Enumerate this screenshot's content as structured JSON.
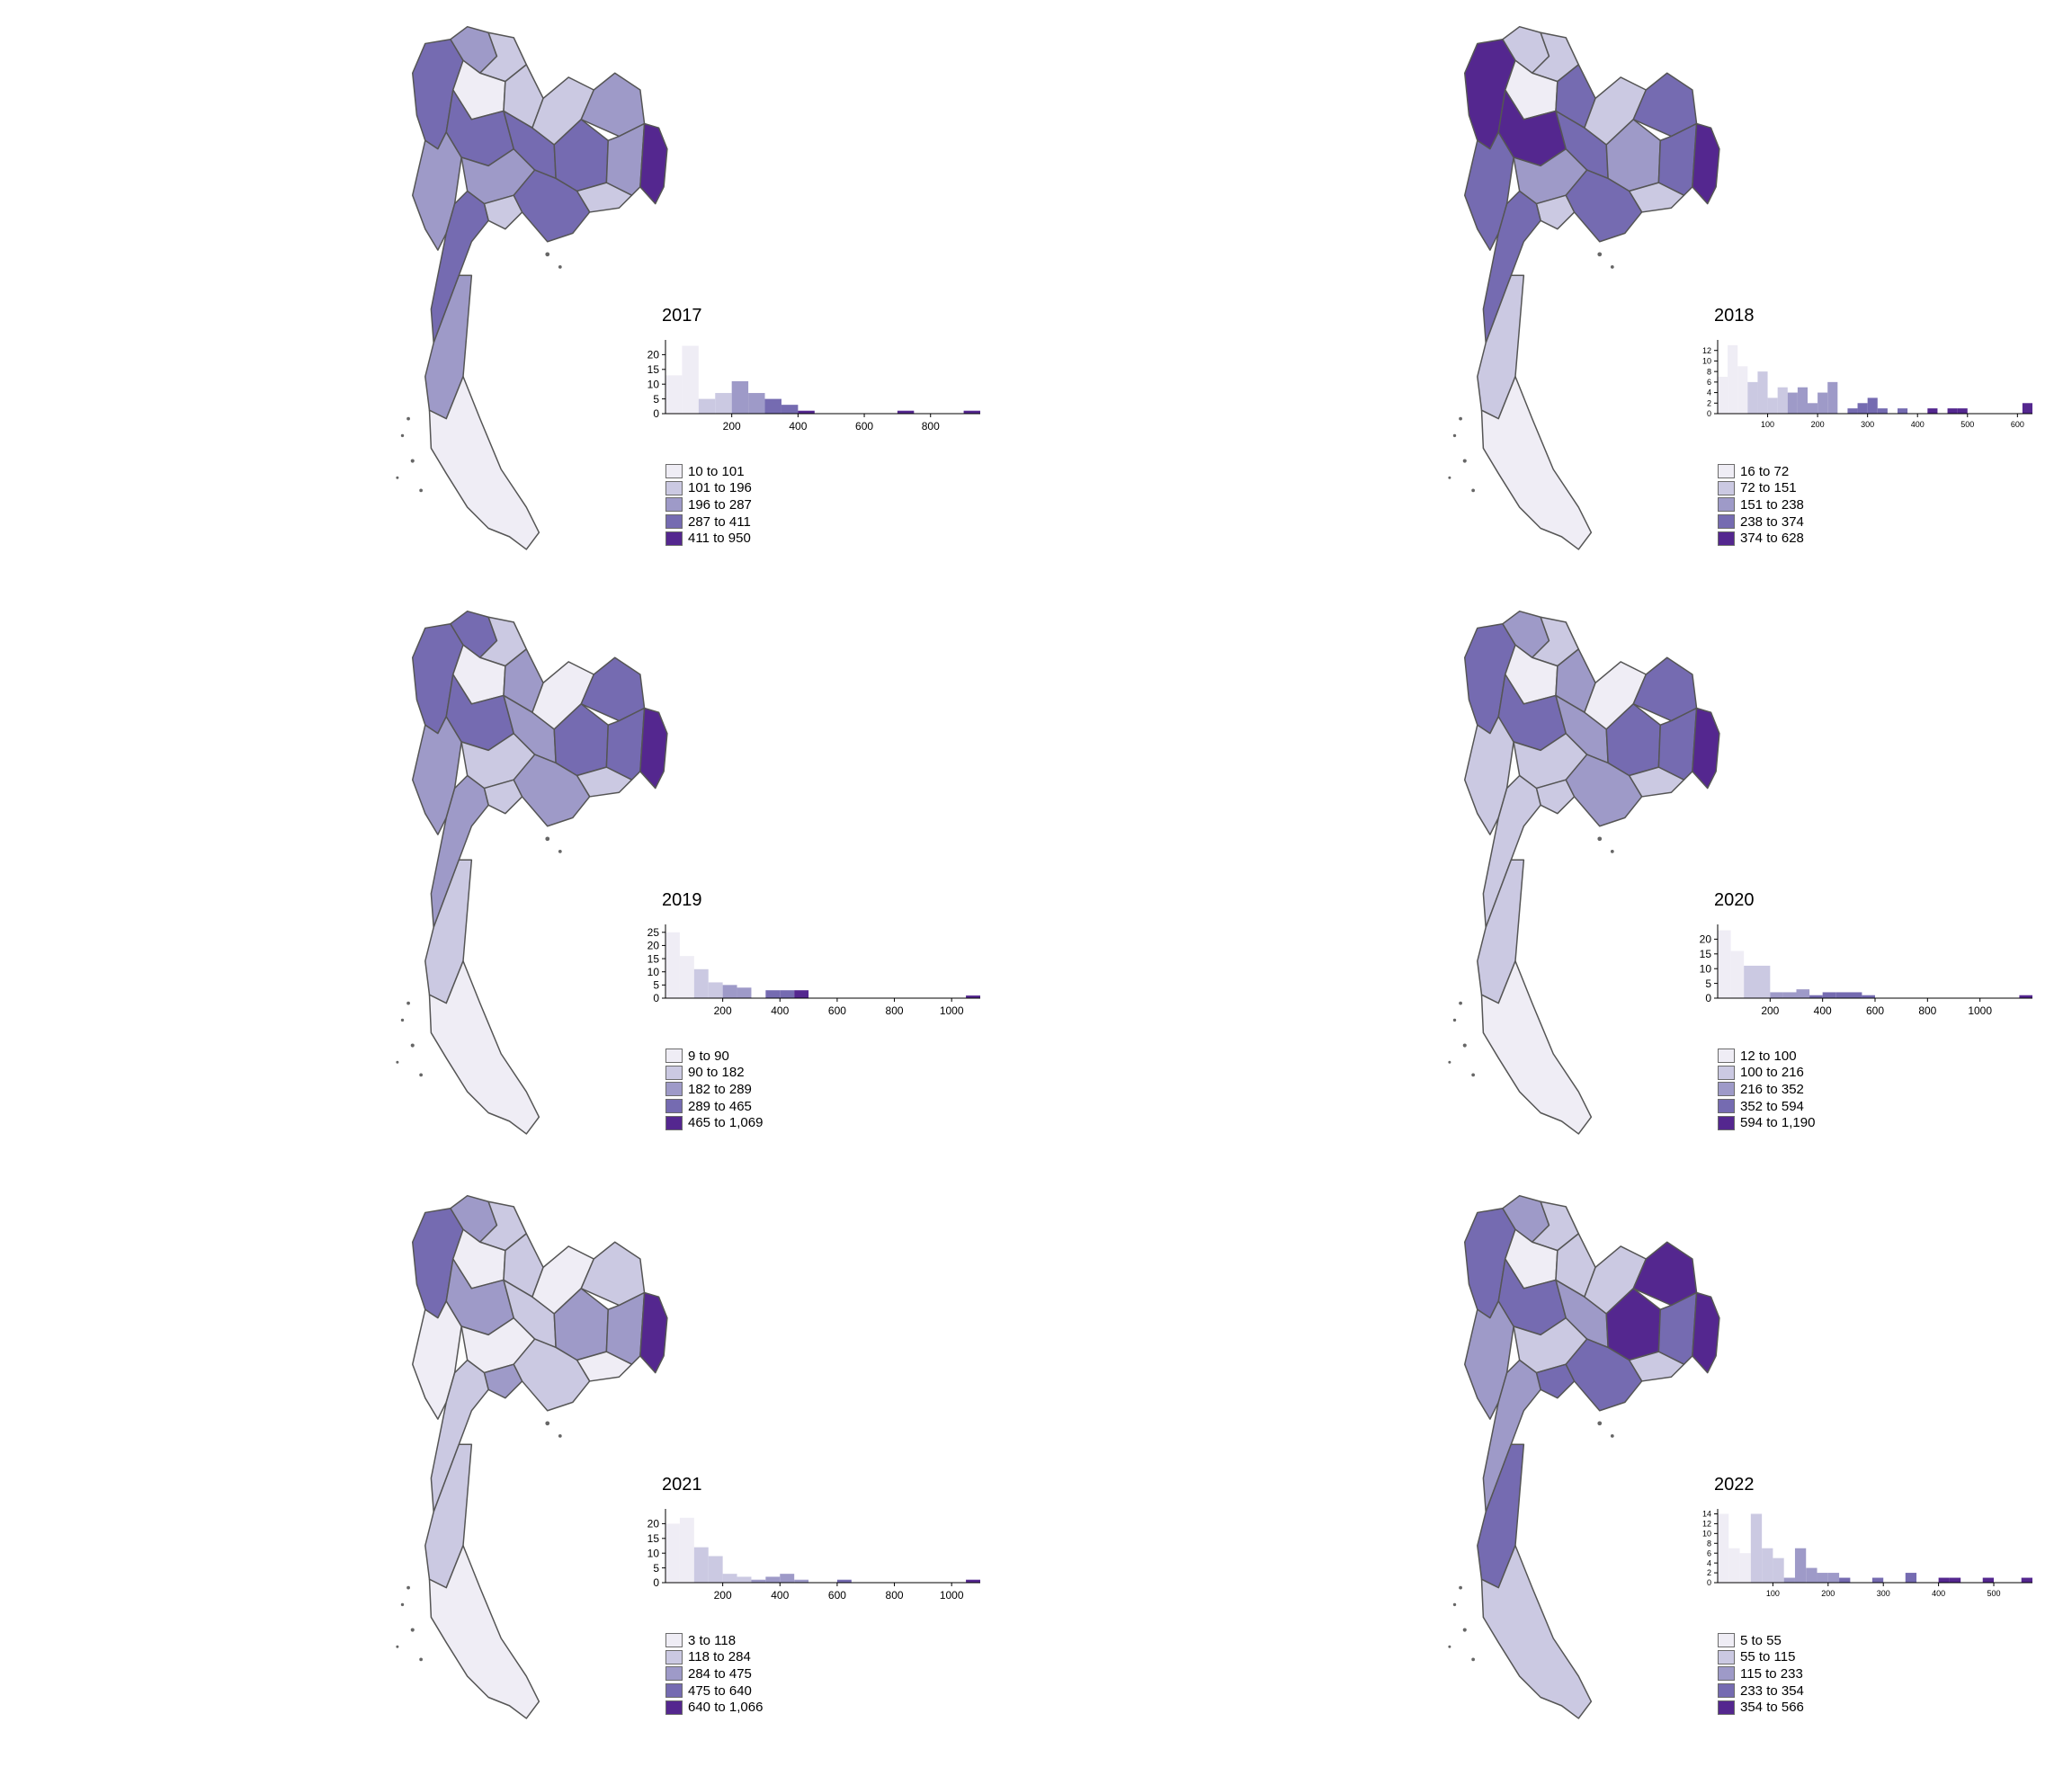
{
  "palette": [
    "#efedf5",
    "#cbc9e2",
    "#9e9ac8",
    "#756bb1",
    "#54278f"
  ],
  "stroke_color": "#555555",
  "panels": [
    {
      "title": "2017",
      "legend": [
        "10 to 101",
        "101 to 196",
        "196 to 287",
        "287 to 411",
        "411 to 950"
      ],
      "chart_data": {
        "type": "bar",
        "title": "",
        "xlim": [
          0,
          950
        ],
        "ylim": [
          0,
          25
        ],
        "xticks": [
          200,
          400,
          600,
          800
        ],
        "yticks": [
          0,
          5,
          10,
          15,
          20
        ],
        "bins": [
          {
            "x0": 0,
            "x1": 50,
            "count": 13,
            "c": 0
          },
          {
            "x0": 50,
            "x1": 100,
            "count": 23,
            "c": 0
          },
          {
            "x0": 100,
            "x1": 150,
            "count": 5,
            "c": 1
          },
          {
            "x0": 150,
            "x1": 200,
            "count": 7,
            "c": 1
          },
          {
            "x0": 200,
            "x1": 250,
            "count": 11,
            "c": 2
          },
          {
            "x0": 250,
            "x1": 300,
            "count": 7,
            "c": 2
          },
          {
            "x0": 300,
            "x1": 350,
            "count": 5,
            "c": 3
          },
          {
            "x0": 350,
            "x1": 400,
            "count": 3,
            "c": 3
          },
          {
            "x0": 400,
            "x1": 450,
            "count": 1,
            "c": 4
          },
          {
            "x0": 700,
            "x1": 750,
            "count": 1,
            "c": 4
          },
          {
            "x0": 900,
            "x1": 950,
            "count": 1,
            "c": 4
          }
        ]
      },
      "regions": {
        "nw": 3,
        "n1": 2,
        "n2": 1,
        "n3": 0,
        "n4": 1,
        "w": 2,
        "c1": 3,
        "c2": 2,
        "c3": 3,
        "ne1": 1,
        "ne2": 2,
        "ne3": 3,
        "ne4": 2,
        "ne5": 1,
        "east": 4,
        "bkk": 1,
        "se": 3,
        "s1": 3,
        "s2": 2,
        "s3": 0
      }
    },
    {
      "title": "2018",
      "legend": [
        "16 to 72",
        "72 to 151",
        "151 to 238",
        "238 to 374",
        "374 to 628"
      ],
      "chart_data": {
        "type": "bar",
        "title": "",
        "xlim": [
          0,
          630
        ],
        "ylim": [
          0,
          14
        ],
        "xticks": [
          100,
          200,
          300,
          400,
          500,
          600
        ],
        "yticks": [
          0,
          2,
          4,
          6,
          8,
          10,
          12
        ],
        "bins": [
          {
            "x0": 0,
            "x1": 20,
            "count": 7,
            "c": 0
          },
          {
            "x0": 20,
            "x1": 40,
            "count": 13,
            "c": 0
          },
          {
            "x0": 40,
            "x1": 60,
            "count": 9,
            "c": 0
          },
          {
            "x0": 60,
            "x1": 80,
            "count": 6,
            "c": 1
          },
          {
            "x0": 80,
            "x1": 100,
            "count": 8,
            "c": 1
          },
          {
            "x0": 100,
            "x1": 120,
            "count": 3,
            "c": 1
          },
          {
            "x0": 120,
            "x1": 140,
            "count": 5,
            "c": 1
          },
          {
            "x0": 140,
            "x1": 160,
            "count": 4,
            "c": 2
          },
          {
            "x0": 160,
            "x1": 180,
            "count": 5,
            "c": 2
          },
          {
            "x0": 180,
            "x1": 200,
            "count": 2,
            "c": 2
          },
          {
            "x0": 200,
            "x1": 220,
            "count": 4,
            "c": 2
          },
          {
            "x0": 220,
            "x1": 240,
            "count": 6,
            "c": 2
          },
          {
            "x0": 260,
            "x1": 280,
            "count": 1,
            "c": 3
          },
          {
            "x0": 280,
            "x1": 300,
            "count": 2,
            "c": 3
          },
          {
            "x0": 300,
            "x1": 320,
            "count": 3,
            "c": 3
          },
          {
            "x0": 320,
            "x1": 340,
            "count": 1,
            "c": 3
          },
          {
            "x0": 360,
            "x1": 380,
            "count": 1,
            "c": 3
          },
          {
            "x0": 420,
            "x1": 440,
            "count": 1,
            "c": 4
          },
          {
            "x0": 460,
            "x1": 480,
            "count": 1,
            "c": 4
          },
          {
            "x0": 480,
            "x1": 500,
            "count": 1,
            "c": 4
          },
          {
            "x0": 610,
            "x1": 630,
            "count": 2,
            "c": 4
          }
        ]
      },
      "regions": {
        "nw": 4,
        "n1": 1,
        "n2": 1,
        "n3": 0,
        "n4": 3,
        "w": 3,
        "c1": 4,
        "c2": 2,
        "c3": 3,
        "ne1": 1,
        "ne2": 3,
        "ne3": 2,
        "ne4": 3,
        "ne5": 1,
        "east": 4,
        "bkk": 1,
        "se": 3,
        "s1": 3,
        "s2": 1,
        "s3": 0
      }
    },
    {
      "title": "2019",
      "legend": [
        "9 to 90",
        "90 to 182",
        "182 to 289",
        "289 to 465",
        "465 to 1,069"
      ],
      "chart_data": {
        "type": "bar",
        "title": "",
        "xlim": [
          0,
          1100
        ],
        "ylim": [
          0,
          28
        ],
        "xticks": [
          200,
          400,
          600,
          800,
          1000
        ],
        "yticks": [
          0,
          5,
          10,
          15,
          20,
          25
        ],
        "bins": [
          {
            "x0": 0,
            "x1": 50,
            "count": 25,
            "c": 0
          },
          {
            "x0": 50,
            "x1": 100,
            "count": 16,
            "c": 0
          },
          {
            "x0": 100,
            "x1": 150,
            "count": 11,
            "c": 1
          },
          {
            "x0": 150,
            "x1": 200,
            "count": 6,
            "c": 1
          },
          {
            "x0": 200,
            "x1": 250,
            "count": 5,
            "c": 2
          },
          {
            "x0": 250,
            "x1": 300,
            "count": 4,
            "c": 2
          },
          {
            "x0": 350,
            "x1": 400,
            "count": 3,
            "c": 3
          },
          {
            "x0": 400,
            "x1": 450,
            "count": 3,
            "c": 3
          },
          {
            "x0": 450,
            "x1": 500,
            "count": 3,
            "c": 4
          },
          {
            "x0": 1050,
            "x1": 1100,
            "count": 1,
            "c": 4
          }
        ]
      },
      "regions": {
        "nw": 3,
        "n1": 3,
        "n2": 1,
        "n3": 0,
        "n4": 2,
        "w": 2,
        "c1": 3,
        "c2": 1,
        "c3": 2,
        "ne1": 0,
        "ne2": 3,
        "ne3": 3,
        "ne4": 3,
        "ne5": 1,
        "east": 4,
        "bkk": 1,
        "se": 2,
        "s1": 2,
        "s2": 1,
        "s3": 0
      }
    },
    {
      "title": "2020",
      "legend": [
        "12 to 100",
        "100 to 216",
        "216 to 352",
        "352 to 594",
        "594 to 1,190"
      ],
      "chart_data": {
        "type": "bar",
        "title": "",
        "xlim": [
          0,
          1200
        ],
        "ylim": [
          0,
          25
        ],
        "xticks": [
          200,
          400,
          600,
          800,
          1000
        ],
        "yticks": [
          0,
          5,
          10,
          15,
          20
        ],
        "bins": [
          {
            "x0": 0,
            "x1": 50,
            "count": 23,
            "c": 0
          },
          {
            "x0": 50,
            "x1": 100,
            "count": 16,
            "c": 0
          },
          {
            "x0": 100,
            "x1": 200,
            "count": 11,
            "c": 1
          },
          {
            "x0": 200,
            "x1": 250,
            "count": 2,
            "c": 2
          },
          {
            "x0": 250,
            "x1": 300,
            "count": 2,
            "c": 2
          },
          {
            "x0": 300,
            "x1": 350,
            "count": 3,
            "c": 2
          },
          {
            "x0": 350,
            "x1": 400,
            "count": 1,
            "c": 3
          },
          {
            "x0": 400,
            "x1": 450,
            "count": 2,
            "c": 3
          },
          {
            "x0": 450,
            "x1": 550,
            "count": 2,
            "c": 3
          },
          {
            "x0": 550,
            "x1": 600,
            "count": 1,
            "c": 3
          },
          {
            "x0": 1150,
            "x1": 1200,
            "count": 1,
            "c": 4
          }
        ]
      },
      "regions": {
        "nw": 3,
        "n1": 2,
        "n2": 1,
        "n3": 0,
        "n4": 2,
        "w": 1,
        "c1": 3,
        "c2": 1,
        "c3": 2,
        "ne1": 0,
        "ne2": 3,
        "ne3": 3,
        "ne4": 3,
        "ne5": 1,
        "east": 4,
        "bkk": 1,
        "se": 2,
        "s1": 1,
        "s2": 1,
        "s3": 0
      }
    },
    {
      "title": "2021",
      "legend": [
        "3 to 118",
        "118 to 284",
        "284 to 475",
        "475 to 640",
        "640 to 1,066"
      ],
      "chart_data": {
        "type": "bar",
        "title": "",
        "xlim": [
          0,
          1100
        ],
        "ylim": [
          0,
          25
        ],
        "xticks": [
          200,
          400,
          600,
          800,
          1000
        ],
        "yticks": [
          0,
          5,
          10,
          15,
          20
        ],
        "bins": [
          {
            "x0": 0,
            "x1": 50,
            "count": 20,
            "c": 0
          },
          {
            "x0": 50,
            "x1": 100,
            "count": 22,
            "c": 0
          },
          {
            "x0": 100,
            "x1": 150,
            "count": 12,
            "c": 1
          },
          {
            "x0": 150,
            "x1": 200,
            "count": 9,
            "c": 1
          },
          {
            "x0": 200,
            "x1": 250,
            "count": 3,
            "c": 1
          },
          {
            "x0": 250,
            "x1": 300,
            "count": 2,
            "c": 1
          },
          {
            "x0": 300,
            "x1": 350,
            "count": 1,
            "c": 2
          },
          {
            "x0": 350,
            "x1": 400,
            "count": 2,
            "c": 2
          },
          {
            "x0": 400,
            "x1": 450,
            "count": 3,
            "c": 2
          },
          {
            "x0": 450,
            "x1": 500,
            "count": 1,
            "c": 2
          },
          {
            "x0": 600,
            "x1": 650,
            "count": 1,
            "c": 3
          },
          {
            "x0": 1050,
            "x1": 1100,
            "count": 1,
            "c": 4
          }
        ]
      },
      "regions": {
        "nw": 3,
        "n1": 2,
        "n2": 1,
        "n3": 0,
        "n4": 1,
        "w": 0,
        "c1": 2,
        "c2": 0,
        "c3": 1,
        "ne1": 0,
        "ne2": 1,
        "ne3": 2,
        "ne4": 2,
        "ne5": 0,
        "east": 4,
        "bkk": 2,
        "se": 1,
        "s1": 1,
        "s2": 1,
        "s3": 0
      }
    },
    {
      "title": "2022",
      "legend": [
        "5 to 55",
        "55 to 115",
        "115 to 233",
        "233 to 354",
        "354 to 566"
      ],
      "chart_data": {
        "type": "bar",
        "title": "",
        "xlim": [
          0,
          570
        ],
        "ylim": [
          0,
          15
        ],
        "xticks": [
          100,
          200,
          300,
          400,
          500
        ],
        "yticks": [
          0,
          2,
          4,
          6,
          8,
          10,
          12,
          14
        ],
        "bins": [
          {
            "x0": 0,
            "x1": 20,
            "count": 14,
            "c": 0
          },
          {
            "x0": 20,
            "x1": 40,
            "count": 7,
            "c": 0
          },
          {
            "x0": 40,
            "x1": 60,
            "count": 6,
            "c": 0
          },
          {
            "x0": 60,
            "x1": 80,
            "count": 14,
            "c": 1
          },
          {
            "x0": 80,
            "x1": 100,
            "count": 7,
            "c": 1
          },
          {
            "x0": 100,
            "x1": 120,
            "count": 5,
            "c": 1
          },
          {
            "x0": 120,
            "x1": 140,
            "count": 1,
            "c": 2
          },
          {
            "x0": 140,
            "x1": 160,
            "count": 7,
            "c": 2
          },
          {
            "x0": 160,
            "x1": 180,
            "count": 3,
            "c": 2
          },
          {
            "x0": 180,
            "x1": 200,
            "count": 2,
            "c": 2
          },
          {
            "x0": 200,
            "x1": 220,
            "count": 2,
            "c": 2
          },
          {
            "x0": 220,
            "x1": 240,
            "count": 1,
            "c": 3
          },
          {
            "x0": 280,
            "x1": 300,
            "count": 1,
            "c": 3
          },
          {
            "x0": 340,
            "x1": 360,
            "count": 2,
            "c": 3
          },
          {
            "x0": 400,
            "x1": 420,
            "count": 1,
            "c": 4
          },
          {
            "x0": 420,
            "x1": 440,
            "count": 1,
            "c": 4
          },
          {
            "x0": 480,
            "x1": 500,
            "count": 1,
            "c": 4
          },
          {
            "x0": 550,
            "x1": 570,
            "count": 1,
            "c": 4
          }
        ]
      },
      "regions": {
        "nw": 3,
        "n1": 2,
        "n2": 1,
        "n3": 0,
        "n4": 1,
        "w": 2,
        "c1": 3,
        "c2": 1,
        "c3": 2,
        "ne1": 1,
        "ne2": 4,
        "ne3": 4,
        "ne4": 3,
        "ne5": 1,
        "east": 4,
        "bkk": 3,
        "se": 3,
        "s1": 2,
        "s2": 3,
        "s3": 1
      }
    }
  ]
}
